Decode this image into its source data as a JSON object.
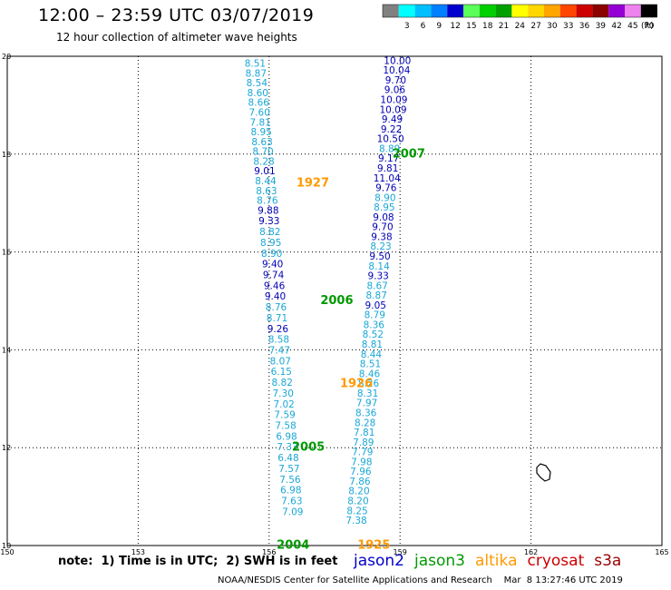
{
  "header": {
    "title": "12:00 – 23:59 UTC 03/07/2019",
    "subtitle": "12 hour collection of altimeter wave heights"
  },
  "color_scale": {
    "unit": "(ft)",
    "bins": [
      {
        "label": "",
        "color": "#808080"
      },
      {
        "label": "3",
        "color": "#00ffff"
      },
      {
        "label": "6",
        "color": "#00bfff"
      },
      {
        "label": "9",
        "color": "#0080ff"
      },
      {
        "label": "12",
        "color": "#0000cd"
      },
      {
        "label": "15",
        "color": "#5aff5a"
      },
      {
        "label": "18",
        "color": "#00d000"
      },
      {
        "label": "21",
        "color": "#00a000"
      },
      {
        "label": "24",
        "color": "#ffff00"
      },
      {
        "label": "27",
        "color": "#ffd700"
      },
      {
        "label": "30",
        "color": "#ffa500"
      },
      {
        "label": "33",
        "color": "#ff4500"
      },
      {
        "label": "36",
        "color": "#cc0000"
      },
      {
        "label": "39",
        "color": "#8b0000"
      },
      {
        "label": "42",
        "color": "#9400d3"
      },
      {
        "label": "45",
        "color": "#ee82ee"
      },
      {
        "label": "70",
        "color": "#000000"
      }
    ]
  },
  "chart_data": {
    "type": "scatter",
    "xlim": [
      150,
      165
    ],
    "ylim": [
      10,
      20
    ],
    "xticks": [
      "150",
      "153",
      "156",
      "159",
      "162",
      "165"
    ],
    "yticks": [
      "10",
      "12",
      "14",
      "16",
      "18",
      "20"
    ],
    "grid": true,
    "colors": {
      "light": "#19a7d6",
      "dark": "#0000b4"
    },
    "tracks": [
      {
        "points": [
          {
            "x": 155.68,
            "y": 19.84,
            "label": "8.51",
            "c": "light"
          },
          {
            "x": 155.7,
            "y": 19.64,
            "label": "8.87",
            "c": "light"
          },
          {
            "x": 155.72,
            "y": 19.44,
            "label": "8.54",
            "c": "light"
          },
          {
            "x": 155.74,
            "y": 19.24,
            "label": "8.60",
            "c": "light"
          },
          {
            "x": 155.76,
            "y": 19.04,
            "label": "8.66",
            "c": "light"
          },
          {
            "x": 155.78,
            "y": 18.84,
            "label": "7.60",
            "c": "light"
          },
          {
            "x": 155.8,
            "y": 18.64,
            "label": "7.81",
            "c": "light"
          },
          {
            "x": 155.82,
            "y": 18.44,
            "label": "8.95",
            "c": "light"
          },
          {
            "x": 155.84,
            "y": 18.24,
            "label": "8.63",
            "c": "light"
          },
          {
            "x": 155.86,
            "y": 18.04,
            "label": "8.70",
            "c": "light"
          },
          {
            "x": 155.88,
            "y": 17.84,
            "label": "8.28",
            "c": "light"
          },
          {
            "x": 155.9,
            "y": 17.64,
            "label": "9.01",
            "c": "dark"
          },
          {
            "x": 155.92,
            "y": 17.44,
            "label": "8.44",
            "c": "light"
          },
          {
            "x": 155.94,
            "y": 17.24,
            "label": "8.63",
            "c": "light"
          },
          {
            "x": 155.96,
            "y": 17.04,
            "label": "8.76",
            "c": "light"
          },
          {
            "x": 155.98,
            "y": 16.84,
            "label": "9.88",
            "c": "dark"
          },
          {
            "x": 156.0,
            "y": 16.62,
            "label": "9.33",
            "c": "dark"
          },
          {
            "x": 156.02,
            "y": 16.4,
            "label": "8.82",
            "c": "light"
          },
          {
            "x": 156.04,
            "y": 16.18,
            "label": "8.95",
            "c": "light"
          },
          {
            "x": 156.06,
            "y": 15.96,
            "label": "8.90",
            "c": "light"
          },
          {
            "x": 156.08,
            "y": 15.74,
            "label": "9.40",
            "c": "dark"
          },
          {
            "x": 156.1,
            "y": 15.52,
            "label": "9.74",
            "c": "dark"
          },
          {
            "x": 156.12,
            "y": 15.3,
            "label": "9.46",
            "c": "dark"
          },
          {
            "x": 156.14,
            "y": 15.08,
            "label": "9.40",
            "c": "dark"
          },
          {
            "x": 156.16,
            "y": 14.86,
            "label": "8.76",
            "c": "light"
          },
          {
            "x": 156.18,
            "y": 14.64,
            "label": "8.71",
            "c": "light"
          },
          {
            "x": 156.2,
            "y": 14.42,
            "label": "9.26",
            "c": "dark"
          },
          {
            "x": 156.22,
            "y": 14.2,
            "label": "8.58",
            "c": "light"
          },
          {
            "x": 156.24,
            "y": 13.98,
            "label": "7.47",
            "c": "light"
          },
          {
            "x": 156.26,
            "y": 13.76,
            "label": "8.07",
            "c": "light"
          },
          {
            "x": 156.28,
            "y": 13.54,
            "label": "6.15",
            "c": "light"
          },
          {
            "x": 156.3,
            "y": 13.32,
            "label": "8.82",
            "c": "light"
          },
          {
            "x": 156.32,
            "y": 13.1,
            "label": "7.30",
            "c": "light"
          },
          {
            "x": 156.34,
            "y": 12.88,
            "label": "7.02",
            "c": "light"
          },
          {
            "x": 156.36,
            "y": 12.66,
            "label": "7.59",
            "c": "light"
          },
          {
            "x": 156.38,
            "y": 12.44,
            "label": "7.58",
            "c": "light"
          },
          {
            "x": 156.4,
            "y": 12.22,
            "label": "6.98",
            "c": "light"
          },
          {
            "x": 156.42,
            "y": 12.0,
            "label": "7.33",
            "c": "light"
          },
          {
            "x": 156.44,
            "y": 11.78,
            "label": "6.48",
            "c": "light"
          },
          {
            "x": 156.46,
            "y": 11.56,
            "label": "7.57",
            "c": "light"
          },
          {
            "x": 156.48,
            "y": 11.34,
            "label": "7.56",
            "c": "light"
          },
          {
            "x": 156.5,
            "y": 11.12,
            "label": "6.98",
            "c": "light"
          },
          {
            "x": 156.52,
            "y": 10.9,
            "label": "7.63",
            "c": "light"
          },
          {
            "x": 156.54,
            "y": 10.68,
            "label": "7.09",
            "c": "light"
          }
        ]
      },
      {
        "points": [
          {
            "x": 158.94,
            "y": 19.9,
            "label": "10.00",
            "c": "dark"
          },
          {
            "x": 158.92,
            "y": 19.7,
            "label": "10.04",
            "c": "dark"
          },
          {
            "x": 158.9,
            "y": 19.5,
            "label": "9.70",
            "c": "dark"
          },
          {
            "x": 158.88,
            "y": 19.3,
            "label": "9.06",
            "c": "dark"
          },
          {
            "x": 158.86,
            "y": 19.1,
            "label": "10.09",
            "c": "dark"
          },
          {
            "x": 158.84,
            "y": 18.9,
            "label": "10.09",
            "c": "dark"
          },
          {
            "x": 158.82,
            "y": 18.7,
            "label": "9.49",
            "c": "dark"
          },
          {
            "x": 158.8,
            "y": 18.5,
            "label": "9.22",
            "c": "dark"
          },
          {
            "x": 158.78,
            "y": 18.3,
            "label": "10.50",
            "c": "dark"
          },
          {
            "x": 158.76,
            "y": 18.1,
            "label": "8.89",
            "c": "light"
          },
          {
            "x": 158.74,
            "y": 17.9,
            "label": "9.17",
            "c": "dark"
          },
          {
            "x": 158.72,
            "y": 17.7,
            "label": "9.81",
            "c": "dark"
          },
          {
            "x": 158.7,
            "y": 17.5,
            "label": "11.04",
            "c": "dark"
          },
          {
            "x": 158.68,
            "y": 17.3,
            "label": "9.76",
            "c": "dark"
          },
          {
            "x": 158.66,
            "y": 17.1,
            "label": "8.90",
            "c": "light"
          },
          {
            "x": 158.64,
            "y": 16.9,
            "label": "8.95",
            "c": "light"
          },
          {
            "x": 158.62,
            "y": 16.7,
            "label": "9.08",
            "c": "dark"
          },
          {
            "x": 158.6,
            "y": 16.5,
            "label": "9.70",
            "c": "dark"
          },
          {
            "x": 158.58,
            "y": 16.3,
            "label": "9.38",
            "c": "dark"
          },
          {
            "x": 158.56,
            "y": 16.1,
            "label": "8.23",
            "c": "light"
          },
          {
            "x": 158.54,
            "y": 15.9,
            "label": "9.50",
            "c": "dark"
          },
          {
            "x": 158.52,
            "y": 15.7,
            "label": "8.14",
            "c": "light"
          },
          {
            "x": 158.5,
            "y": 15.5,
            "label": "9.33",
            "c": "dark"
          },
          {
            "x": 158.48,
            "y": 15.3,
            "label": "8.67",
            "c": "light"
          },
          {
            "x": 158.46,
            "y": 15.1,
            "label": "8.87",
            "c": "light"
          },
          {
            "x": 158.44,
            "y": 14.9,
            "label": "9.05",
            "c": "dark"
          },
          {
            "x": 158.42,
            "y": 14.7,
            "label": "8.79",
            "c": "light"
          },
          {
            "x": 158.4,
            "y": 14.5,
            "label": "8.36",
            "c": "light"
          },
          {
            "x": 158.38,
            "y": 14.3,
            "label": "8.52",
            "c": "light"
          },
          {
            "x": 158.36,
            "y": 14.1,
            "label": "8.81",
            "c": "light"
          },
          {
            "x": 158.34,
            "y": 13.9,
            "label": "8.44",
            "c": "light"
          },
          {
            "x": 158.32,
            "y": 13.7,
            "label": "8.51",
            "c": "light"
          },
          {
            "x": 158.3,
            "y": 13.5,
            "label": "8.46",
            "c": "light"
          },
          {
            "x": 158.28,
            "y": 13.3,
            "label": "8.26",
            "c": "light"
          },
          {
            "x": 158.26,
            "y": 13.1,
            "label": "8.31",
            "c": "light"
          },
          {
            "x": 158.24,
            "y": 12.9,
            "label": "7.97",
            "c": "light"
          },
          {
            "x": 158.22,
            "y": 12.7,
            "label": "8.36",
            "c": "light"
          },
          {
            "x": 158.2,
            "y": 12.5,
            "label": "8.28",
            "c": "light"
          },
          {
            "x": 158.18,
            "y": 12.3,
            "label": "7.81",
            "c": "light"
          },
          {
            "x": 158.16,
            "y": 12.1,
            "label": "7.89",
            "c": "light"
          },
          {
            "x": 158.14,
            "y": 11.9,
            "label": "7.79",
            "c": "light"
          },
          {
            "x": 158.12,
            "y": 11.7,
            "label": "7.98",
            "c": "light"
          },
          {
            "x": 158.1,
            "y": 11.5,
            "label": "7.96",
            "c": "light"
          },
          {
            "x": 158.08,
            "y": 11.3,
            "label": "7.86",
            "c": "light"
          },
          {
            "x": 158.06,
            "y": 11.1,
            "label": "8.20",
            "c": "light"
          },
          {
            "x": 158.04,
            "y": 10.9,
            "label": "8.20",
            "c": "light"
          },
          {
            "x": 158.02,
            "y": 10.7,
            "label": "8.25",
            "c": "light"
          },
          {
            "x": 158.0,
            "y": 10.5,
            "label": "7.38",
            "c": "light"
          }
        ]
      }
    ],
    "pass_labels": [
      {
        "x": 157.0,
        "y": 17.4,
        "text": "1927",
        "color": "#ff9900"
      },
      {
        "x": 159.2,
        "y": 18.0,
        "text": "2007",
        "color": "#009900"
      },
      {
        "x": 157.55,
        "y": 15.0,
        "text": "2006",
        "color": "#009900"
      },
      {
        "x": 158.0,
        "y": 13.3,
        "text": "1926",
        "color": "#ff9900"
      },
      {
        "x": 156.9,
        "y": 12.0,
        "text": "2005",
        "color": "#009900"
      },
      {
        "x": 158.4,
        "y": 10.0,
        "text": "1925",
        "color": "#ff9900"
      },
      {
        "x": 156.55,
        "y": 10.0,
        "text": "2004",
        "color": "#009900"
      }
    ]
  },
  "footer": {
    "note": "note:  1) Time is in UTC;  2) SWH is in feet",
    "legend": [
      {
        "name": "jason2",
        "color": "#0000cc"
      },
      {
        "name": "jason3",
        "color": "#009900"
      },
      {
        "name": "altika",
        "color": "#ff9900"
      },
      {
        "name": "cryosat",
        "color": "#cc0000"
      },
      {
        "name": "s3a",
        "color": "#990000"
      }
    ],
    "credit": "NOAA/NESDIS Center for Satellite Applications and Research    Mar  8 13:27:46 UTC 2019"
  }
}
